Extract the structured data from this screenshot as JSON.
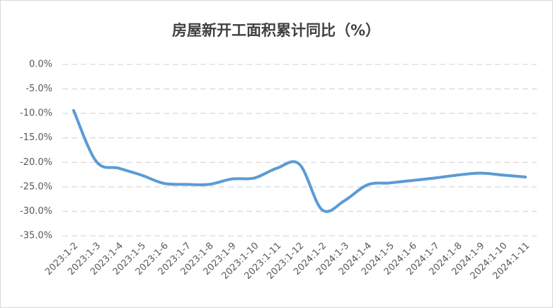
{
  "chart_data": {
    "type": "line",
    "title": "房屋新开工面积累计同比（%）",
    "categories": [
      "2023:1-2",
      "2023:1-3",
      "2023:1-4",
      "2023:1-5",
      "2023:1-6",
      "2023:1-7",
      "2023:1-8",
      "2023:1-9",
      "2023:1-10",
      "2023:1-11",
      "2023:1-12",
      "2024:1-2",
      "2024:1-3",
      "2024:1-4",
      "2024:1-5",
      "2024:1-6",
      "2024:1-7",
      "2024:1-8",
      "2024:1-9",
      "2024:1-10",
      "2024:1-11"
    ],
    "values": [
      -9.4,
      -19.8,
      -21.2,
      -22.6,
      -24.3,
      -24.5,
      -24.5,
      -23.4,
      -23.2,
      -21.2,
      -20.4,
      -29.7,
      -27.8,
      -24.6,
      -24.2,
      -23.7,
      -23.2,
      -22.6,
      -22.2,
      -22.6,
      -23.0
    ],
    "color": "#5b9bd5",
    "ylim": [
      -35,
      0
    ],
    "yticks": [
      {
        "value": 0,
        "label": "0.0%"
      },
      {
        "value": -5,
        "label": "-5.0%"
      },
      {
        "value": -10,
        "label": "-10.0%"
      },
      {
        "value": -15,
        "label": "-15.0%"
      },
      {
        "value": -20,
        "label": "-20.0%"
      },
      {
        "value": -25,
        "label": "-25.0%"
      },
      {
        "value": -30,
        "label": "-30.0%"
      },
      {
        "value": -35,
        "label": "-35.0%"
      }
    ],
    "grid": true
  }
}
